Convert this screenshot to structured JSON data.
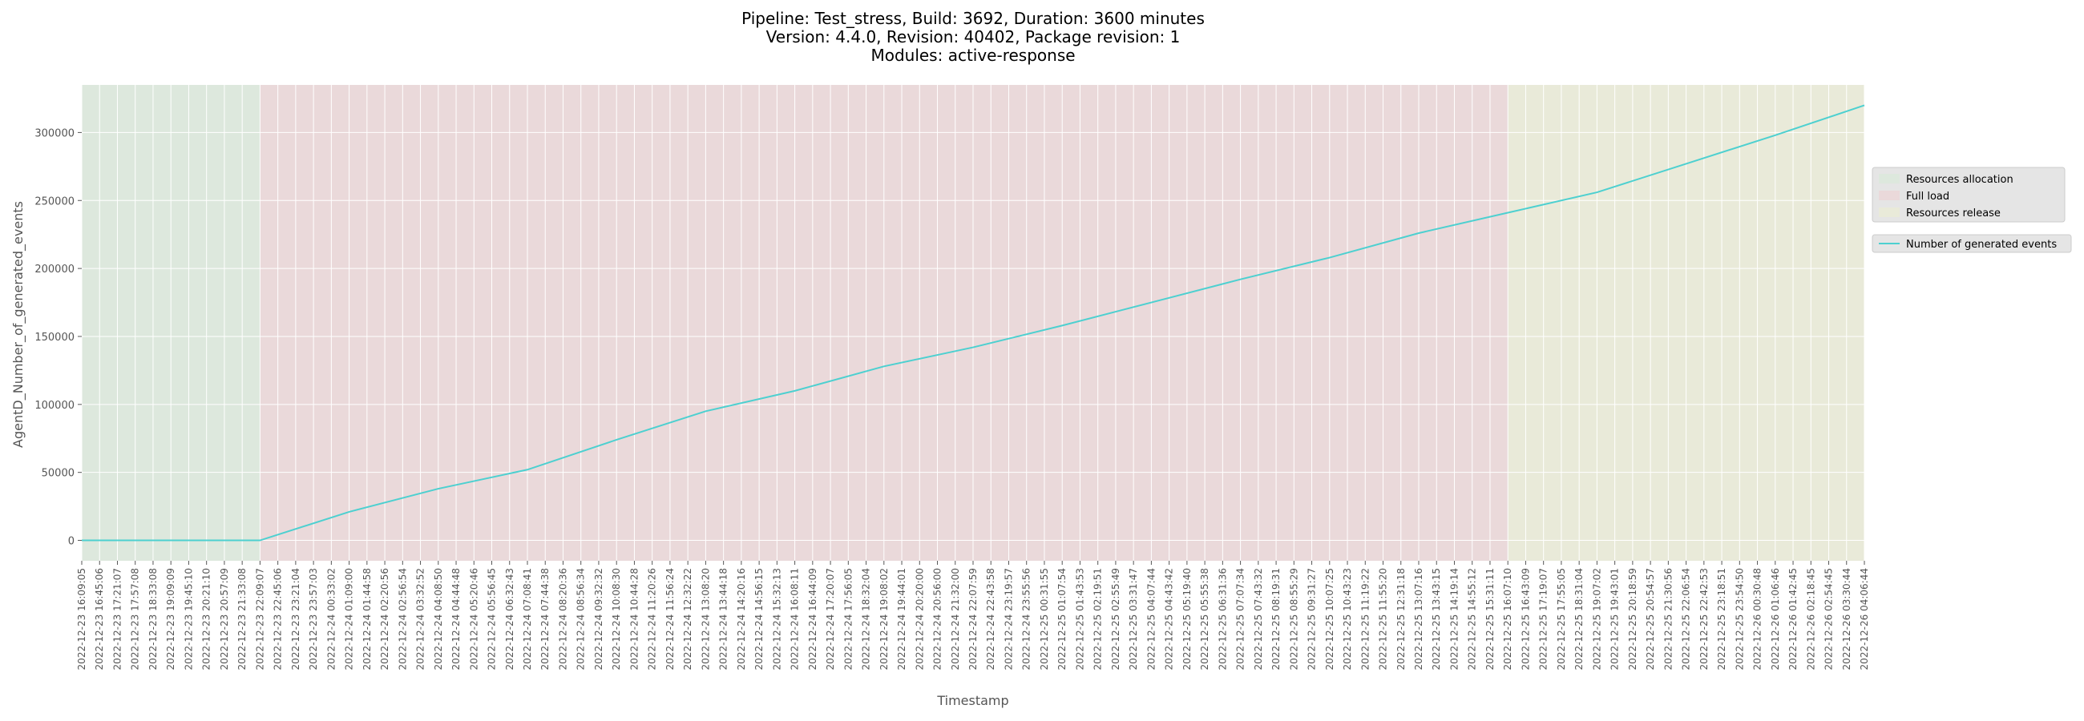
{
  "chart_data": {
    "type": "line",
    "title_lines": [
      "Pipeline: Test_stress, Build: 3692, Duration: 3600 minutes",
      "Version: 4.4.0, Revision: 40402, Package revision: 1",
      "Modules: active-response"
    ],
    "xlabel": "Timestamp",
    "ylabel": "AgentD_Number_of_generated_events",
    "ylim": [
      -15000,
      335000
    ],
    "yticks": [
      0,
      50000,
      100000,
      150000,
      200000,
      250000,
      300000
    ],
    "grid": true,
    "legend_position": "right",
    "x_tick_labels": [
      "2022-12-23 16:09:05",
      "2022-12-23 16:45:06",
      "2022-12-23 17:21:07",
      "2022-12-23 17:57:08",
      "2022-12-23 18:33:08",
      "2022-12-23 19:09:09",
      "2022-12-23 19:45:10",
      "2022-12-23 20:21:10",
      "2022-12-23 20:57:09",
      "2022-12-23 21:33:08",
      "2022-12-23 22:09:07",
      "2022-12-23 22:45:06",
      "2022-12-23 23:21:04",
      "2022-12-23 23:57:03",
      "2022-12-24 00:33:02",
      "2022-12-24 01:09:00",
      "2022-12-24 01:44:58",
      "2022-12-24 02:20:56",
      "2022-12-24 02:56:54",
      "2022-12-24 03:32:52",
      "2022-12-24 04:08:50",
      "2022-12-24 04:44:48",
      "2022-12-24 05:20:46",
      "2022-12-24 05:56:45",
      "2022-12-24 06:32:43",
      "2022-12-24 07:08:41",
      "2022-12-24 07:44:38",
      "2022-12-24 08:20:36",
      "2022-12-24 08:56:34",
      "2022-12-24 09:32:32",
      "2022-12-24 10:08:30",
      "2022-12-24 10:44:28",
      "2022-12-24 11:20:26",
      "2022-12-24 11:56:24",
      "2022-12-24 12:32:22",
      "2022-12-24 13:08:20",
      "2022-12-24 13:44:18",
      "2022-12-24 14:20:16",
      "2022-12-24 14:56:15",
      "2022-12-24 15:32:13",
      "2022-12-24 16:08:11",
      "2022-12-24 16:44:09",
      "2022-12-24 17:20:07",
      "2022-12-24 17:56:05",
      "2022-12-24 18:32:04",
      "2022-12-24 19:08:02",
      "2022-12-24 19:44:01",
      "2022-12-24 20:20:00",
      "2022-12-24 20:56:00",
      "2022-12-24 21:32:00",
      "2022-12-24 22:07:59",
      "2022-12-24 22:43:58",
      "2022-12-24 23:19:57",
      "2022-12-24 23:55:56",
      "2022-12-25 00:31:55",
      "2022-12-25 01:07:54",
      "2022-12-25 01:43:53",
      "2022-12-25 02:19:51",
      "2022-12-25 02:55:49",
      "2022-12-25 03:31:47",
      "2022-12-25 04:07:44",
      "2022-12-25 04:43:42",
      "2022-12-25 05:19:40",
      "2022-12-25 05:55:38",
      "2022-12-25 06:31:36",
      "2022-12-25 07:07:34",
      "2022-12-25 07:43:32",
      "2022-12-25 08:19:31",
      "2022-12-25 08:55:29",
      "2022-12-25 09:31:27",
      "2022-12-25 10:07:25",
      "2022-12-25 10:43:23",
      "2022-12-25 11:19:22",
      "2022-12-25 11:55:20",
      "2022-12-25 12:31:18",
      "2022-12-25 13:07:16",
      "2022-12-25 13:43:15",
      "2022-12-25 14:19:14",
      "2022-12-25 14:55:12",
      "2022-12-25 15:31:11",
      "2022-12-25 16:07:10",
      "2022-12-25 16:43:09",
      "2022-12-25 17:19:07",
      "2022-12-25 17:55:05",
      "2022-12-25 18:31:04",
      "2022-12-25 19:07:02",
      "2022-12-25 19:43:01",
      "2022-12-25 20:18:59",
      "2022-12-25 20:54:57",
      "2022-12-25 21:30:56",
      "2022-12-25 22:06:54",
      "2022-12-25 22:42:53",
      "2022-12-25 23:18:51",
      "2022-12-25 23:54:50",
      "2022-12-26 00:30:48",
      "2022-12-26 01:06:46",
      "2022-12-26 01:42:45",
      "2022-12-26 02:18:45",
      "2022-12-26 02:54:45",
      "2022-12-26 03:30:44",
      "2022-12-26 04:06:44"
    ],
    "phases": [
      {
        "name": "Resources allocation",
        "start_tick": 0,
        "end_tick": 10,
        "color": "#dde8dd"
      },
      {
        "name": "Full load",
        "start_tick": 10,
        "end_tick": 80,
        "color": "#ead9da"
      },
      {
        "name": "Resources release",
        "start_tick": 80,
        "end_tick": 100,
        "color": "#e9ead9"
      }
    ],
    "series": [
      {
        "name": "Number of generated events",
        "color": "#4dd0d0",
        "tick_index": [
          0,
          10,
          15,
          20,
          25,
          30,
          35,
          40,
          45,
          50,
          55,
          60,
          65,
          70,
          75,
          80,
          85,
          90,
          95,
          100
        ],
        "values": [
          0,
          0,
          21000,
          38000,
          52000,
          74000,
          95000,
          110000,
          128000,
          142000,
          158000,
          175000,
          192000,
          208000,
          226000,
          241000,
          256000,
          277000,
          298000,
          320000
        ]
      }
    ]
  }
}
